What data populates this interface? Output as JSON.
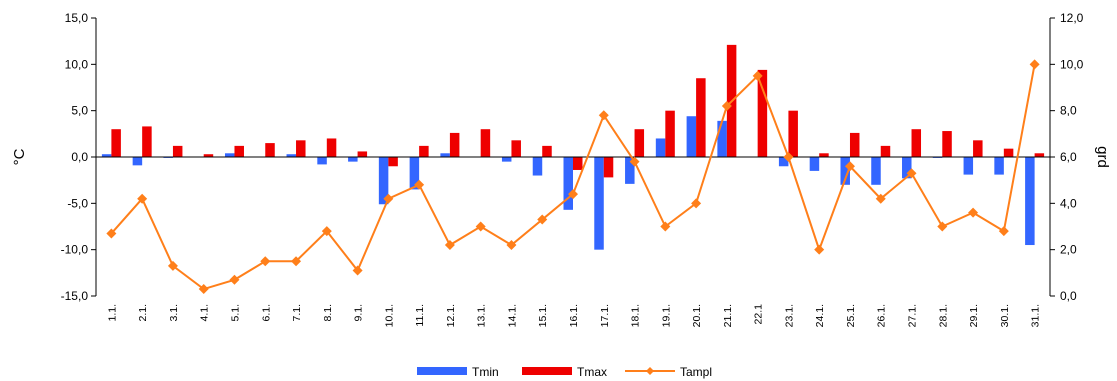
{
  "chart_data": {
    "type": "bar",
    "categories": [
      "1.1.",
      "2.1.",
      "3.1.",
      "4.1.",
      "5.1.",
      "6.1.",
      "7.1.",
      "8.1.",
      "9.1.",
      "10.1.",
      "11.1.",
      "12.1.",
      "13.1.",
      "14.1.",
      "15.1.",
      "16.1.",
      "17.1.",
      "18.1.",
      "19.1.",
      "20.1.",
      "21.1.",
      "22.1",
      "23.1.",
      "24.1.",
      "25.1.",
      "26.1.",
      "27.1.",
      "28.1.",
      "29.1.",
      "30.1.",
      "31.1."
    ],
    "ylabel": "°C",
    "y2label": "grd",
    "ylim": [
      -15,
      15
    ],
    "y2lim": [
      0,
      12
    ],
    "yticks": [
      "15,0",
      "10,0",
      "5,0",
      "0,0",
      "-5,0",
      "-10,0",
      "-15,0"
    ],
    "y2ticks": [
      "12,0",
      "10,0",
      "8,0",
      "6,0",
      "4,0",
      "2,0",
      "0,0"
    ],
    "legend_position": "bottom",
    "series": [
      {
        "name": "Tmin",
        "type": "bar",
        "axis": "left",
        "color": "#3366ff",
        "values": [
          0.3,
          -0.9,
          -0.1,
          0.0,
          0.4,
          0.0,
          0.3,
          -0.8,
          -0.5,
          -5.1,
          -3.5,
          0.4,
          0.0,
          -0.5,
          -2.0,
          -5.7,
          -10.0,
          -2.9,
          2.0,
          4.4,
          3.9,
          0.0,
          -1.0,
          -1.5,
          -3.0,
          -3.0,
          -2.3,
          -0.1,
          -1.9,
          -1.9,
          -9.5
        ]
      },
      {
        "name": "Tmax",
        "type": "bar",
        "axis": "left",
        "color": "#ee0000",
        "values": [
          3.0,
          3.3,
          1.2,
          0.3,
          1.2,
          1.5,
          1.8,
          2.0,
          0.6,
          -1.0,
          1.2,
          2.6,
          3.0,
          1.8,
          1.2,
          -1.4,
          -2.2,
          3.0,
          5.0,
          8.5,
          12.1,
          9.4,
          5.0,
          0.4,
          2.6,
          1.2,
          3.0,
          2.8,
          1.8,
          0.9,
          0.4
        ]
      },
      {
        "name": "Tampl",
        "type": "line",
        "axis": "right",
        "color": "#ff7f1a",
        "values": [
          2.7,
          4.2,
          1.3,
          0.3,
          0.7,
          1.5,
          1.5,
          2.8,
          1.1,
          4.2,
          4.8,
          2.2,
          3.0,
          2.2,
          3.3,
          4.4,
          7.8,
          5.8,
          3.0,
          4.0,
          8.2,
          9.5,
          6.0,
          2.0,
          5.6,
          4.2,
          5.3,
          3.0,
          3.6,
          2.8,
          10.0
        ]
      }
    ]
  }
}
